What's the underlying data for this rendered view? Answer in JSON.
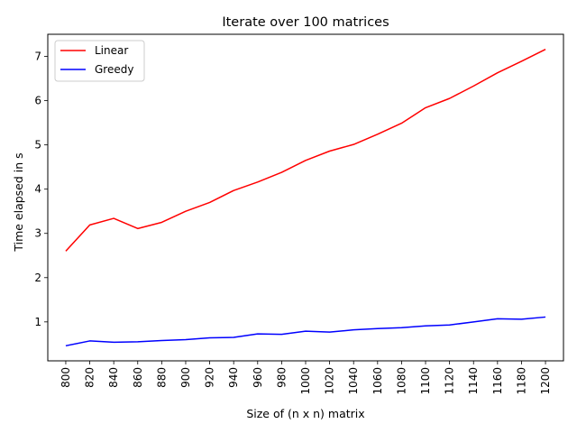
{
  "chart_data": {
    "type": "line",
    "title": "Iterate over 100 matrices",
    "xlabel": "Size of (n x n) matrix",
    "ylabel": "Time elapsed in s",
    "x": [
      800,
      820,
      840,
      860,
      880,
      900,
      920,
      940,
      960,
      980,
      1000,
      1020,
      1040,
      1060,
      1080,
      1100,
      1120,
      1140,
      1160,
      1180,
      1200
    ],
    "x_tick_labels": [
      "800",
      "820",
      "840",
      "860",
      "880",
      "900",
      "920",
      "940",
      "960",
      "980",
      "1000",
      "1020",
      "1040",
      "1060",
      "1080",
      "1100",
      "1120",
      "1140",
      "1160",
      "1180",
      "1200"
    ],
    "y_ticks": [
      1,
      2,
      3,
      4,
      5,
      6,
      7
    ],
    "xlim": [
      785,
      1215
    ],
    "ylim": [
      0.12,
      7.5
    ],
    "grid": false,
    "legend_position": "upper left",
    "series": [
      {
        "name": "Linear",
        "color": "#ff0000",
        "values": [
          2.6,
          3.19,
          3.34,
          3.11,
          3.25,
          3.5,
          3.7,
          3.97,
          4.16,
          4.38,
          4.65,
          4.86,
          5.01,
          5.24,
          5.49,
          5.84,
          6.05,
          6.33,
          6.63,
          6.89,
          7.16
        ]
      },
      {
        "name": "Greedy",
        "color": "#0000ff",
        "values": [
          0.46,
          0.57,
          0.54,
          0.55,
          0.58,
          0.6,
          0.64,
          0.65,
          0.73,
          0.72,
          0.79,
          0.77,
          0.82,
          0.85,
          0.87,
          0.91,
          0.93,
          1.0,
          1.07,
          1.06,
          1.11
        ]
      }
    ]
  }
}
